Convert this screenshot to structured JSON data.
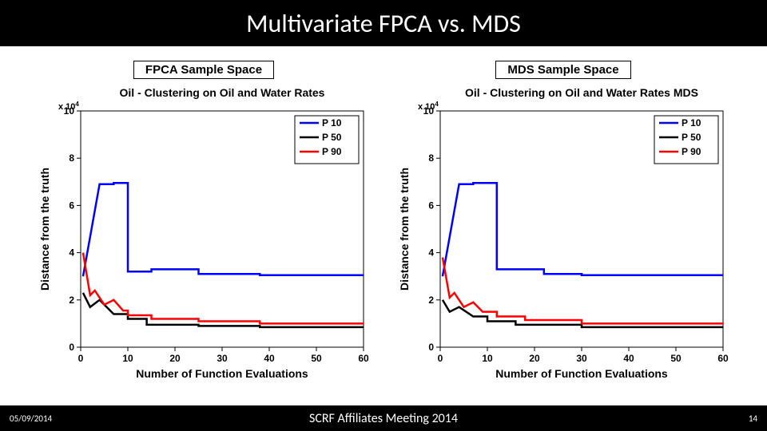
{
  "title": "Multivariate FPCA vs. MDS",
  "footer": {
    "date": "05/09/2014",
    "center": "SCRF Affiliates Meeting 2014",
    "page": "14"
  },
  "panels": [
    {
      "label": "FPCA Sample Space",
      "chart": {
        "type": "line-step",
        "title": "Oil - Clustering on Oil and Water Rates",
        "exponent_label": "x 10",
        "exponent_sup": "4",
        "xlabel": "Number of Function Evaluations",
        "ylabel": "Distance from the truth",
        "xlim": [
          0,
          60
        ],
        "ylim": [
          0,
          10
        ],
        "xticks": [
          0,
          10,
          20,
          30,
          40,
          50,
          60
        ],
        "yticks": [
          0,
          2,
          4,
          6,
          8,
          10
        ],
        "bg": "#ffffff",
        "axis_color": "#000000",
        "title_fontsize": 14,
        "label_fontsize": 14,
        "tick_fontsize": 12,
        "legend": {
          "pos": "top-right",
          "items": [
            {
              "label": "P 10",
              "color": "#0000ff"
            },
            {
              "label": "P 50",
              "color": "#000000"
            },
            {
              "label": "P 90",
              "color": "#ff0000"
            }
          ]
        },
        "line_width": 2.5,
        "series": [
          {
            "name": "P10",
            "color": "#0000ff",
            "points": [
              [
                0.5,
                3.0
              ],
              [
                4,
                6.9
              ],
              [
                7,
                6.9
              ],
              [
                7,
                6.95
              ],
              [
                10,
                6.95
              ],
              [
                10,
                3.2
              ],
              [
                15,
                3.2
              ],
              [
                15,
                3.3
              ],
              [
                25,
                3.3
              ],
              [
                25,
                3.1
              ],
              [
                38,
                3.1
              ],
              [
                38,
                3.05
              ],
              [
                60,
                3.05
              ]
            ]
          },
          {
            "name": "P50",
            "color": "#000000",
            "points": [
              [
                0.5,
                2.3
              ],
              [
                2,
                1.7
              ],
              [
                4,
                2.0
              ],
              [
                7,
                1.4
              ],
              [
                10,
                1.4
              ],
              [
                10,
                1.2
              ],
              [
                14,
                1.2
              ],
              [
                14,
                0.95
              ],
              [
                25,
                0.95
              ],
              [
                25,
                0.9
              ],
              [
                38,
                0.9
              ],
              [
                38,
                0.85
              ],
              [
                60,
                0.85
              ]
            ]
          },
          {
            "name": "P90",
            "color": "#ff0000",
            "points": [
              [
                0.5,
                4.0
              ],
              [
                2,
                2.2
              ],
              [
                3,
                2.4
              ],
              [
                5,
                1.8
              ],
              [
                7,
                2.0
              ],
              [
                9,
                1.55
              ],
              [
                10,
                1.55
              ],
              [
                10,
                1.35
              ],
              [
                15,
                1.35
              ],
              [
                15,
                1.2
              ],
              [
                25,
                1.2
              ],
              [
                25,
                1.1
              ],
              [
                38,
                1.1
              ],
              [
                38,
                1.0
              ],
              [
                60,
                1.0
              ]
            ]
          }
        ]
      }
    },
    {
      "label": "MDS Sample Space",
      "chart": {
        "type": "line-step",
        "title": "Oil - Clustering on Oil and Water Rates MDS",
        "exponent_label": "x 10",
        "exponent_sup": "4",
        "xlabel": "Number of Function Evaluations",
        "ylabel": "Distance from the truth",
        "xlim": [
          0,
          60
        ],
        "ylim": [
          0,
          10
        ],
        "xticks": [
          0,
          10,
          20,
          30,
          40,
          50,
          60
        ],
        "yticks": [
          0,
          2,
          4,
          6,
          8,
          10
        ],
        "bg": "#ffffff",
        "axis_color": "#000000",
        "title_fontsize": 14,
        "label_fontsize": 14,
        "tick_fontsize": 12,
        "legend": {
          "pos": "top-right",
          "items": [
            {
              "label": "P 10",
              "color": "#0000ff"
            },
            {
              "label": "P 50",
              "color": "#000000"
            },
            {
              "label": "P 90",
              "color": "#ff0000"
            }
          ]
        },
        "line_width": 2.5,
        "series": [
          {
            "name": "P10",
            "color": "#0000ff",
            "points": [
              [
                0.5,
                3.0
              ],
              [
                4,
                6.9
              ],
              [
                7,
                6.9
              ],
              [
                7,
                6.95
              ],
              [
                12,
                6.95
              ],
              [
                12,
                3.3
              ],
              [
                22,
                3.3
              ],
              [
                22,
                3.1
              ],
              [
                30,
                3.1
              ],
              [
                30,
                3.05
              ],
              [
                60,
                3.05
              ]
            ]
          },
          {
            "name": "P50",
            "color": "#000000",
            "points": [
              [
                0.5,
                2.0
              ],
              [
                2,
                1.5
              ],
              [
                4,
                1.7
              ],
              [
                7,
                1.3
              ],
              [
                10,
                1.3
              ],
              [
                10,
                1.1
              ],
              [
                16,
                1.1
              ],
              [
                16,
                0.95
              ],
              [
                30,
                0.95
              ],
              [
                30,
                0.85
              ],
              [
                60,
                0.85
              ]
            ]
          },
          {
            "name": "P90",
            "color": "#ff0000",
            "points": [
              [
                0.5,
                3.8
              ],
              [
                2,
                2.1
              ],
              [
                3,
                2.3
              ],
              [
                5,
                1.7
              ],
              [
                7,
                1.9
              ],
              [
                9,
                1.5
              ],
              [
                12,
                1.5
              ],
              [
                12,
                1.3
              ],
              [
                18,
                1.3
              ],
              [
                18,
                1.15
              ],
              [
                30,
                1.15
              ],
              [
                30,
                1.0
              ],
              [
                60,
                1.0
              ]
            ]
          }
        ]
      }
    }
  ]
}
